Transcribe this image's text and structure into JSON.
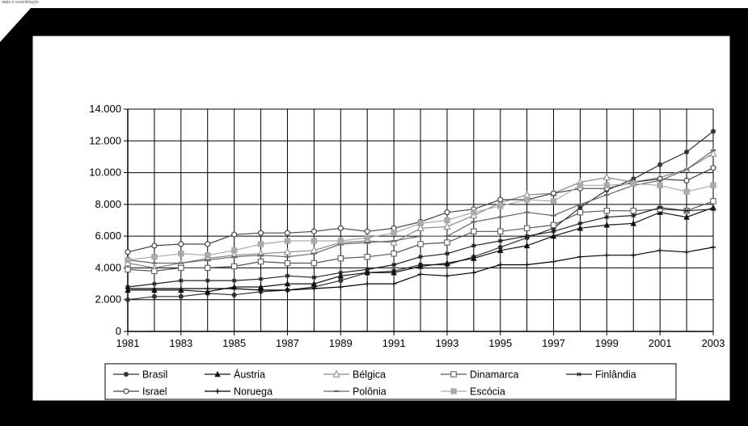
{
  "header_note": "dado e consolidação",
  "chart_data": {
    "type": "line",
    "title": "",
    "xlabel": "",
    "ylabel": "",
    "ylim": [
      0,
      14000
    ],
    "y_ticks": [
      "0",
      "2.000",
      "4.000",
      "6.000",
      "8.000",
      "10.000",
      "12.000",
      "14.000"
    ],
    "x": [
      1981,
      1982,
      1983,
      1984,
      1985,
      1986,
      1987,
      1988,
      1989,
      1990,
      1991,
      1992,
      1993,
      1994,
      1995,
      1996,
      1997,
      1998,
      1999,
      2000,
      2001,
      2002,
      2003
    ],
    "x_tick_labels": [
      "1981",
      "1983",
      "1985",
      "1987",
      "1989",
      "1991",
      "1993",
      "1995",
      "1997",
      "1999",
      "2001",
      "2003"
    ],
    "grid": true,
    "legend_position": "bottom",
    "series": [
      {
        "name": "Brasil",
        "color": "#333333",
        "marker": "dot",
        "values": [
          2000,
          2200,
          2200,
          2400,
          2300,
          2500,
          2600,
          2800,
          3200,
          3700,
          3800,
          4200,
          4200,
          4700,
          5300,
          5900,
          6500,
          7800,
          8900,
          9600,
          10500,
          11300,
          12600
        ]
      },
      {
        "name": "Áustria",
        "color": "#111111",
        "marker": "triangle-filled",
        "values": [
          2600,
          2600,
          2600,
          2500,
          2800,
          2800,
          3000,
          3000,
          3500,
          3700,
          3700,
          4100,
          4300,
          4600,
          5100,
          5400,
          6000,
          6500,
          6700,
          6800,
          7500,
          7200,
          7800
        ]
      },
      {
        "name": "Bélgica",
        "color": "#888888",
        "marker": "triangle-open",
        "values": [
          4300,
          4000,
          4300,
          4600,
          4800,
          4900,
          5000,
          5100,
          5600,
          5700,
          5600,
          6500,
          6600,
          7300,
          8100,
          8600,
          8700,
          9400,
          9700,
          9400,
          9700,
          10200,
          11200
        ]
      },
      {
        "name": "Dinamarca",
        "color": "#555555",
        "marker": "square-open",
        "values": [
          3900,
          3800,
          4000,
          4000,
          4100,
          4400,
          4300,
          4300,
          4600,
          4700,
          4900,
          5500,
          5600,
          6300,
          6300,
          6500,
          6700,
          7500,
          7600,
          7600,
          7700,
          7600,
          8200
        ]
      },
      {
        "name": "Finlândia",
        "color": "#222222",
        "marker": "asterisk",
        "values": [
          2800,
          3000,
          3200,
          3200,
          3200,
          3300,
          3500,
          3400,
          3700,
          3900,
          4200,
          4700,
          4900,
          5400,
          5700,
          6000,
          6300,
          6800,
          7200,
          7300,
          7800,
          7600,
          7700
        ]
      },
      {
        "name": "Israel",
        "color": "#444444",
        "marker": "circle-open",
        "values": [
          5000,
          5400,
          5500,
          5500,
          6100,
          6200,
          6200,
          6300,
          6500,
          6300,
          6500,
          6900,
          7500,
          7700,
          8300,
          8300,
          8700,
          9000,
          9000,
          9400,
          9600,
          9500,
          10300
        ]
      },
      {
        "name": "Noruega",
        "color": "#000000",
        "marker": "plus",
        "values": [
          2700,
          2700,
          2700,
          2700,
          2700,
          2600,
          2600,
          2700,
          2800,
          3000,
          3000,
          3600,
          3500,
          3700,
          4200,
          4200,
          4400,
          4700,
          4800,
          4800,
          5100,
          5000,
          5300
        ]
      },
      {
        "name": "Polônia",
        "color": "#666666",
        "marker": "dash",
        "values": [
          4500,
          4300,
          4300,
          4500,
          4700,
          4800,
          4700,
          4900,
          5500,
          5600,
          5700,
          6000,
          6000,
          6900,
          7200,
          7500,
          7300,
          8000,
          8600,
          9200,
          9500,
          10200,
          11400
        ]
      },
      {
        "name": "Escócia",
        "color": "#aaaaaa",
        "marker": "square-filled",
        "values": [
          4500,
          4700,
          4900,
          4800,
          5100,
          5500,
          5700,
          5700,
          5700,
          5900,
          6200,
          6800,
          7000,
          7500,
          7900,
          8300,
          8200,
          9200,
          9200,
          9300,
          9200,
          8800,
          9200
        ]
      }
    ]
  }
}
